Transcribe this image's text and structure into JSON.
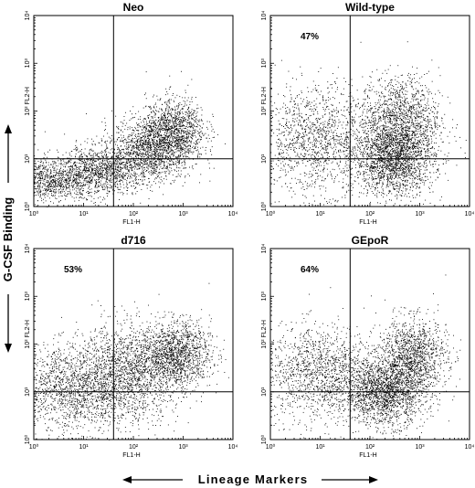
{
  "figure": {
    "y_title": "G-CSF Binding",
    "x_title": "Lineage Markers"
  },
  "chart_data": [
    {
      "type": "scatter",
      "title": "Neo",
      "xlabel": "FL1-H",
      "ylabel": "FL2-H",
      "xscale": "log",
      "yscale": "log",
      "xlim": [
        1,
        10000
      ],
      "ylim": [
        1,
        10000
      ],
      "x_ticks": [
        "10⁰",
        "10¹",
        "10²",
        "10³",
        "10⁴"
      ],
      "y_ticks": [
        "10⁰",
        "10¹",
        "10²",
        "10³",
        "10⁴"
      ],
      "quadrant_gate": {
        "x": 40,
        "y": 10
      },
      "annotation": "",
      "point_color": "#000000",
      "clusters": [
        {
          "center": [
            2,
            3.5
          ],
          "spread": [
            0.55,
            0.22
          ],
          "n": 1100
        },
        {
          "center": [
            25,
            6
          ],
          "spread": [
            0.5,
            0.25
          ],
          "n": 1200
        },
        {
          "center": [
            250,
            18
          ],
          "spread": [
            0.4,
            0.33
          ],
          "n": 1500
        },
        {
          "center": [
            700,
            45
          ],
          "spread": [
            0.3,
            0.33
          ],
          "n": 900
        }
      ]
    },
    {
      "type": "scatter",
      "title": "Wild-type",
      "xlabel": "FL1-H",
      "ylabel": "FL2-H",
      "xscale": "log",
      "yscale": "log",
      "xlim": [
        1,
        10000
      ],
      "ylim": [
        1,
        10000
      ],
      "x_ticks": [
        "10⁰",
        "10¹",
        "10²",
        "10³",
        "10⁴"
      ],
      "y_ticks": [
        "10⁰",
        "10¹",
        "10²",
        "10³",
        "10⁴"
      ],
      "quadrant_gate": {
        "x": 40,
        "y": 10
      },
      "annotation": "47%",
      "point_color": "#000000",
      "clusters": [
        {
          "center": [
            8,
            25
          ],
          "spread": [
            0.55,
            0.55
          ],
          "n": 1300
        },
        {
          "center": [
            300,
            10
          ],
          "spread": [
            0.4,
            0.38
          ],
          "n": 2000
        },
        {
          "center": [
            400,
            70
          ],
          "spread": [
            0.4,
            0.45
          ],
          "n": 1300
        }
      ]
    },
    {
      "type": "scatter",
      "title": "d716",
      "xlabel": "FL1-H",
      "ylabel": "FL2-H",
      "xscale": "log",
      "yscale": "log",
      "xlim": [
        1,
        10000
      ],
      "ylim": [
        1,
        10000
      ],
      "x_ticks": [
        "10⁰",
        "10¹",
        "10²",
        "10³",
        "10⁴"
      ],
      "y_ticks": [
        "10⁰",
        "10¹",
        "10²",
        "10³",
        "10⁴"
      ],
      "quadrant_gate": {
        "x": 40,
        "y": 10
      },
      "annotation": "53%",
      "point_color": "#000000",
      "clusters": [
        {
          "center": [
            6,
            12
          ],
          "spread": [
            0.55,
            0.45
          ],
          "n": 1500
        },
        {
          "center": [
            80,
            25
          ],
          "spread": [
            0.5,
            0.5
          ],
          "n": 1600
        },
        {
          "center": [
            700,
            60
          ],
          "spread": [
            0.35,
            0.35
          ],
          "n": 1400
        }
      ]
    },
    {
      "type": "scatter",
      "title": "GEpoR",
      "xlabel": "FL1-H",
      "ylabel": "FL2-H",
      "xscale": "log",
      "yscale": "log",
      "xlim": [
        1,
        10000
      ],
      "ylim": [
        1,
        10000
      ],
      "x_ticks": [
        "10⁰",
        "10¹",
        "10²",
        "10³",
        "10⁴"
      ],
      "y_ticks": [
        "10⁰",
        "10¹",
        "10²",
        "10³",
        "10⁴"
      ],
      "quadrant_gate": {
        "x": 40,
        "y": 10
      },
      "annotation": "64%",
      "point_color": "#000000",
      "clusters": [
        {
          "center": [
            10,
            25
          ],
          "spread": [
            0.55,
            0.5
          ],
          "n": 1400
        },
        {
          "center": [
            200,
            10
          ],
          "spread": [
            0.4,
            0.35
          ],
          "n": 1800
        },
        {
          "center": [
            700,
            55
          ],
          "spread": [
            0.35,
            0.4
          ],
          "n": 1300
        }
      ]
    }
  ]
}
